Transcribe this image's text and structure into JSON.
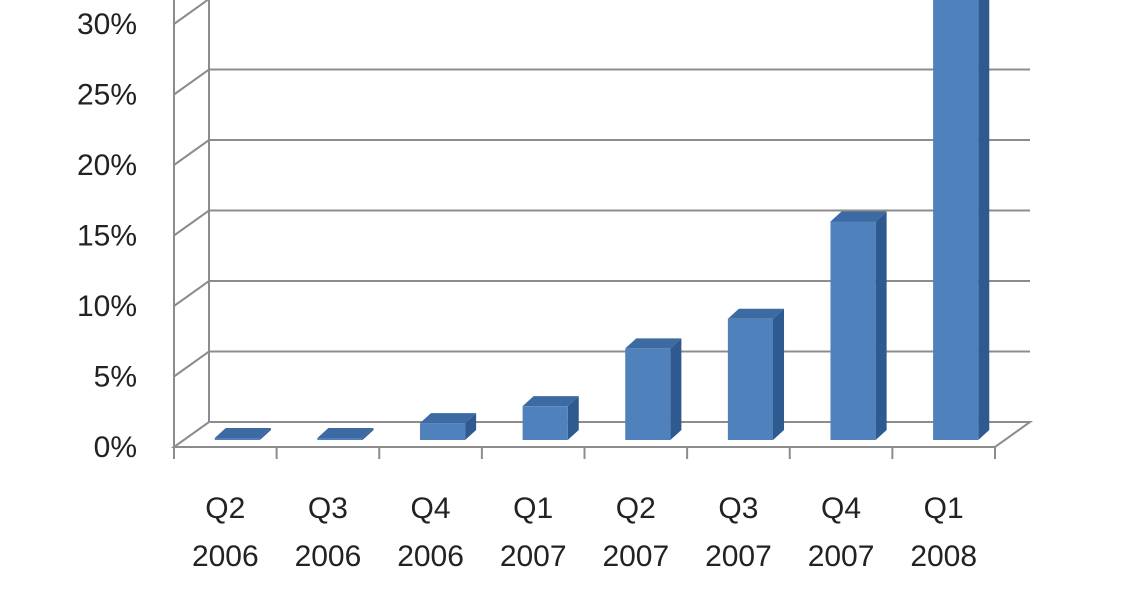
{
  "chart_data": {
    "type": "bar",
    "categories": [
      [
        "Q2",
        "2006"
      ],
      [
        "Q3",
        "2006"
      ],
      [
        "Q4",
        "2006"
      ],
      [
        "Q1",
        "2007"
      ],
      [
        "Q2",
        "2007"
      ],
      [
        "Q3",
        "2007"
      ],
      [
        "Q4",
        "2007"
      ],
      [
        "Q1",
        "2008"
      ]
    ],
    "values": [
      0.1,
      0.1,
      1.2,
      2.4,
      6.5,
      8.6,
      15.5,
      31.5
    ],
    "ylim": [
      0,
      30
    ],
    "yticks": [
      "0%",
      "5%",
      "10%",
      "15%",
      "20%",
      "25%",
      "30%"
    ],
    "grid": true,
    "style": "3d-column",
    "colors": {
      "bar_front": "#4f81bd",
      "bar_side": "#2f5a8f",
      "bar_top": "#3d6aa3",
      "grid": "#8c8c8c"
    }
  }
}
